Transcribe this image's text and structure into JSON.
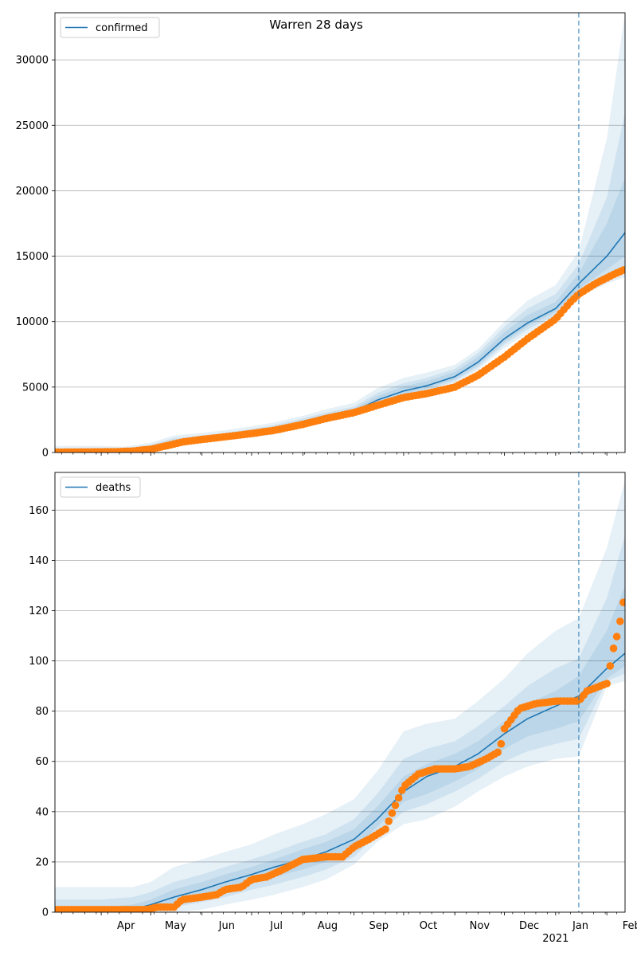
{
  "figure_title": "Warren 28 days",
  "colors": {
    "line": "#1f77b4",
    "band": "#1f77b4",
    "observed": "#ff7f0e",
    "grid": "#b0b0b0",
    "cutoff": "#1f77b4"
  },
  "x_axis": {
    "start": "2020-03-04",
    "end": "2021-02-12",
    "month_ticks": [
      {
        "date": "2020-04-01",
        "label": "Apr",
        "sublabel": ""
      },
      {
        "date": "2020-05-01",
        "label": "May",
        "sublabel": ""
      },
      {
        "date": "2020-06-01",
        "label": "Jun",
        "sublabel": ""
      },
      {
        "date": "2020-07-01",
        "label": "Jul",
        "sublabel": ""
      },
      {
        "date": "2020-08-01",
        "label": "Aug",
        "sublabel": ""
      },
      {
        "date": "2020-09-01",
        "label": "Sep",
        "sublabel": ""
      },
      {
        "date": "2020-10-01",
        "label": "Oct",
        "sublabel": ""
      },
      {
        "date": "2020-11-01",
        "label": "Nov",
        "sublabel": ""
      },
      {
        "date": "2020-12-01",
        "label": "Dec",
        "sublabel": ""
      },
      {
        "date": "2021-01-01",
        "label": "Jan",
        "sublabel": "2021"
      },
      {
        "date": "2021-02-01",
        "label": "Feb",
        "sublabel": ""
      }
    ],
    "forecast_cutoff": "2021-01-15"
  },
  "chart_data": [
    {
      "type": "line",
      "legend": "confirmed",
      "legend_position": "top-left",
      "ylim": [
        0,
        33600
      ],
      "yticks": [
        0,
        5000,
        10000,
        15000,
        20000,
        25000,
        30000
      ],
      "grid": true,
      "fit": {
        "dates": [
          "2020-03-04",
          "2020-04-01",
          "2020-04-15",
          "2020-05-01",
          "2020-05-15",
          "2020-06-01",
          "2020-06-15",
          "2020-07-01",
          "2020-07-15",
          "2020-08-01",
          "2020-08-15",
          "2020-09-01",
          "2020-09-15",
          "2020-10-01",
          "2020-10-15",
          "2020-11-01",
          "2020-11-15",
          "2020-12-01",
          "2020-12-15",
          "2021-01-01",
          "2021-01-15",
          "2021-02-01",
          "2021-02-12"
        ],
        "values": [
          40,
          60,
          130,
          350,
          800,
          1050,
          1250,
          1500,
          1750,
          2250,
          2700,
          3150,
          4000,
          4700,
          5100,
          5800,
          6900,
          8700,
          9900,
          11000,
          12900,
          15000,
          16800
        ]
      },
      "bands": [
        {
          "lower": [
            0,
            0,
            30,
            150,
            500,
            750,
            950,
            1150,
            1400,
            1900,
            2300,
            2800,
            3450,
            4100,
            4550,
            5300,
            6300,
            8000,
            9100,
            10200,
            11900,
            12900,
            13400
          ],
          "upper": [
            500,
            500,
            450,
            750,
            1300,
            1500,
            1700,
            2000,
            2300,
            2800,
            3300,
            3800,
            4900,
            5700,
            6100,
            6700,
            7900,
            10000,
            11600,
            12800,
            15400,
            24000,
            33600
          ]
        },
        {
          "lower": [
            0,
            0,
            60,
            220,
            600,
            850,
            1050,
            1250,
            1500,
            2000,
            2450,
            2950,
            3650,
            4300,
            4750,
            5450,
            6500,
            8250,
            9400,
            10500,
            12200,
            13400,
            14200
          ],
          "upper": [
            300,
            320,
            300,
            600,
            1100,
            1300,
            1500,
            1800,
            2100,
            2600,
            3050,
            3500,
            4550,
            5300,
            5700,
            6400,
            7600,
            9600,
            11000,
            12100,
            14400,
            19500,
            26000
          ]
        },
        {
          "lower": [
            0,
            20,
            90,
            280,
            680,
            930,
            1130,
            1350,
            1600,
            2100,
            2550,
            3050,
            3800,
            4450,
            4900,
            5600,
            6650,
            8450,
            9650,
            10750,
            12500,
            14000,
            15000
          ],
          "upper": [
            180,
            220,
            220,
            480,
            950,
            1180,
            1380,
            1650,
            1950,
            2450,
            2900,
            3350,
            4300,
            5050,
            5450,
            6150,
            7300,
            9200,
            10500,
            11500,
            13700,
            17500,
            21000
          ]
        }
      ],
      "observed": {
        "dates": [
          "2020-03-04",
          "2020-03-20",
          "2020-04-01",
          "2020-04-10",
          "2020-04-20",
          "2020-05-01",
          "2020-05-10",
          "2020-05-20",
          "2020-06-01",
          "2020-06-15",
          "2020-07-01",
          "2020-07-15",
          "2020-08-01",
          "2020-08-15",
          "2020-09-01",
          "2020-09-15",
          "2020-10-01",
          "2020-10-15",
          "2020-11-01",
          "2020-11-15",
          "2020-12-01",
          "2020-12-15",
          "2021-01-01",
          "2021-01-10",
          "2021-01-15",
          "2021-01-25",
          "2021-02-05",
          "2021-02-12"
        ],
        "values": [
          30,
          40,
          50,
          60,
          110,
          250,
          500,
          800,
          1000,
          1200,
          1450,
          1700,
          2150,
          2600,
          3050,
          3600,
          4200,
          4500,
          5000,
          5900,
          7300,
          8700,
          10200,
          11500,
          12100,
          12900,
          13600,
          14000
        ]
      }
    },
    {
      "type": "line",
      "legend": "deaths",
      "legend_position": "top-left",
      "ylim": [
        0,
        175
      ],
      "yticks": [
        0,
        20,
        40,
        60,
        80,
        100,
        120,
        140,
        160
      ],
      "grid": true,
      "fit": {
        "dates": [
          "2020-03-04",
          "2020-04-01",
          "2020-04-20",
          "2020-05-01",
          "2020-05-15",
          "2020-06-01",
          "2020-06-15",
          "2020-07-01",
          "2020-07-15",
          "2020-08-01",
          "2020-08-15",
          "2020-09-01",
          "2020-09-15",
          "2020-10-01",
          "2020-10-15",
          "2020-11-01",
          "2020-11-15",
          "2020-12-01",
          "2020-12-15",
          "2021-01-01",
          "2021-01-15",
          "2021-02-01",
          "2021-02-12"
        ],
        "values": [
          0,
          0,
          1,
          3,
          6,
          9,
          12,
          15,
          18,
          21,
          24,
          29,
          37,
          48,
          54,
          58,
          63,
          71,
          77,
          82,
          86,
          97,
          103
        ]
      },
      "bands": [
        {
          "lower": [
            0,
            0,
            0,
            0,
            0,
            1,
            3,
            5,
            7,
            10,
            13,
            19,
            28,
            35,
            37,
            42,
            48,
            54,
            58,
            61,
            62,
            90,
            92
          ],
          "upper": [
            10,
            10,
            10,
            12,
            18,
            21,
            24,
            27,
            31,
            35,
            39,
            45,
            56,
            72,
            75,
            77,
            84,
            93,
            103,
            112,
            117,
            145,
            172
          ]
        },
        {
          "lower": [
            0,
            0,
            0,
            1,
            2,
            4,
            6,
            9,
            11,
            14,
            17,
            22,
            31,
            40,
            43,
            48,
            53,
            60,
            64,
            67,
            69,
            92,
            95
          ],
          "upper": [
            5,
            5,
            6,
            8,
            12,
            15,
            18,
            21,
            24,
            28,
            31,
            37,
            47,
            61,
            65,
            68,
            74,
            82,
            90,
            97,
            101,
            125,
            150
          ]
        },
        {
          "lower": [
            0,
            0,
            0,
            1,
            3,
            6,
            9,
            12,
            14,
            17,
            20,
            25,
            34,
            44,
            47,
            52,
            57,
            65,
            70,
            73,
            76,
            93,
            98
          ],
          "upper": [
            2,
            2,
            3,
            5,
            9,
            12,
            15,
            18,
            21,
            25,
            28,
            33,
            42,
            54,
            59,
            63,
            68,
            76,
            83,
            88,
            94,
            112,
            130
          ]
        }
      ],
      "observed": {
        "dates": [
          "2020-03-04",
          "2020-03-20",
          "2020-04-10",
          "2020-04-28",
          "2020-05-05",
          "2020-05-15",
          "2020-05-20",
          "2020-06-01",
          "2020-06-10",
          "2020-06-15",
          "2020-06-25",
          "2020-07-01",
          "2020-07-10",
          "2020-07-20",
          "2020-08-01",
          "2020-08-15",
          "2020-08-25",
          "2020-09-01",
          "2020-09-10",
          "2020-09-20",
          "2020-09-25",
          "2020-10-01",
          "2020-10-10",
          "2020-10-20",
          "2020-11-01",
          "2020-11-10",
          "2020-11-20",
          "2020-11-28",
          "2020-12-01",
          "2020-12-10",
          "2020-12-20",
          "2021-01-01",
          "2021-01-15",
          "2021-01-20",
          "2021-02-01",
          "2021-02-05",
          "2021-02-08",
          "2021-02-12"
        ],
        "values": [
          1,
          1,
          1,
          1,
          2,
          2,
          5,
          6,
          7,
          9,
          10,
          13,
          14,
          17,
          21,
          22,
          22,
          26,
          29,
          33,
          41,
          50,
          55,
          57,
          57,
          58,
          61,
          64,
          73,
          81,
          83,
          84,
          84,
          88,
          91,
          105,
          112,
          127
        ]
      }
    }
  ]
}
